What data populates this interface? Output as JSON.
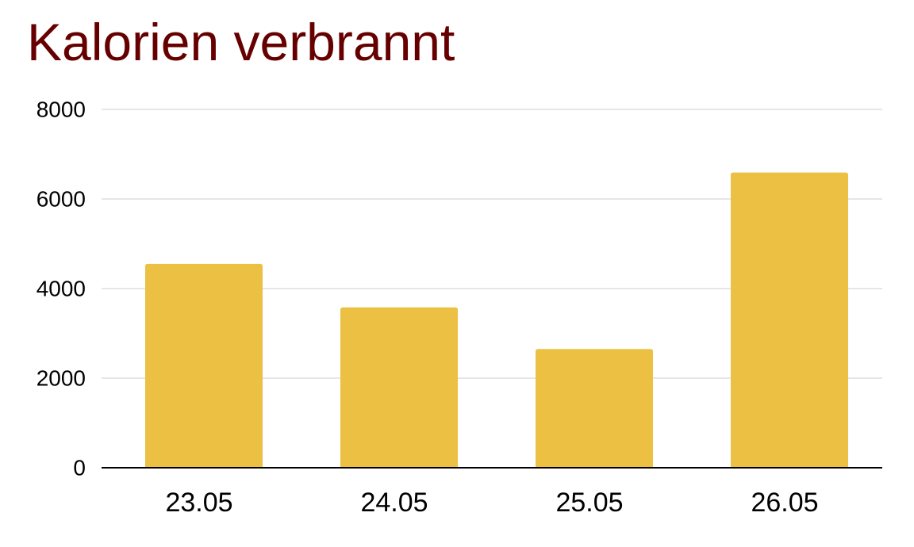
{
  "colors": {
    "title": "#660000",
    "bar": "#ecc042",
    "gridline": "#cccccc",
    "axis": "#000000",
    "label": "#000000"
  },
  "chart_data": {
    "type": "bar",
    "title": "Kalorien verbrannt",
    "xlabel": "",
    "ylabel": "",
    "categories": [
      "23.05",
      "24.05",
      "25.05",
      "26.05"
    ],
    "values": [
      4550,
      3580,
      2650,
      6590
    ],
    "ylim": [
      0,
      8000
    ],
    "yticks": [
      0,
      2000,
      4000,
      6000,
      8000
    ],
    "ytick_labels": [
      "0",
      "2000",
      "4000",
      "6000",
      "8000"
    ],
    "grid": true,
    "legend": "none"
  }
}
